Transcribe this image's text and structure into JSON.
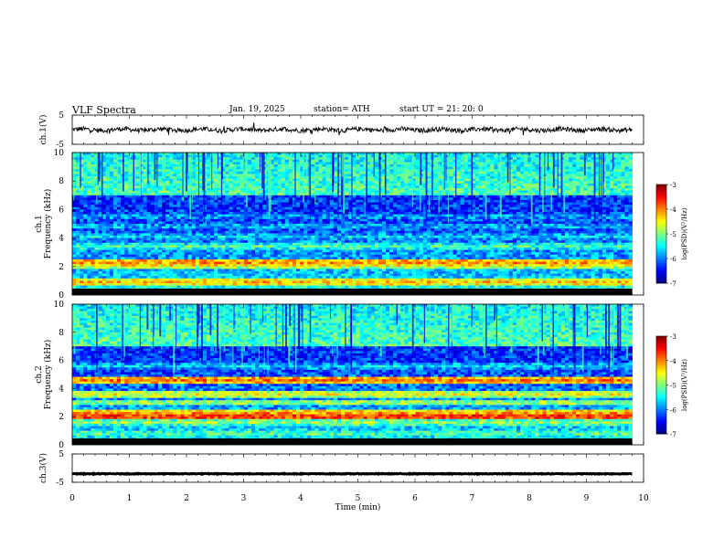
{
  "header": {
    "title": "VLF  Spectra",
    "date": "Jan. 19, 2025",
    "station": "station= ATH",
    "start": "start  UT  =    21: 20: 0"
  },
  "chart_data": [
    {
      "type": "line",
      "id": "ch1",
      "ylabel": "ch.1(V)",
      "ylim": [
        -5,
        5
      ],
      "yticks": [
        "5",
        "-5"
      ],
      "xlim": [
        0,
        10
      ],
      "series": [
        {
          "color": "#000000",
          "trace": "noisy",
          "level": 0.0,
          "end_min": 9.8
        }
      ]
    },
    {
      "type": "heatmap",
      "id": "ch1-spectrogram",
      "ylabel": "ch.1\nFrequency  (kHz)",
      "ylim": [
        0,
        10
      ],
      "yticks": [
        "0",
        "2",
        "4",
        "6",
        "8",
        "10"
      ],
      "xlim": [
        0,
        10
      ],
      "data_end_min": 9.8,
      "bands": [
        {
          "f": 0.5,
          "level": -5.3
        },
        {
          "f": 0.9,
          "level": -4.2
        },
        {
          "f": 2.1,
          "level": -4.5
        },
        {
          "f": 2.3,
          "level": -4.0
        },
        {
          "f": 3.4,
          "level": -5.2
        },
        {
          "f": 4.1,
          "level": -5.6
        },
        {
          "f": 4.8,
          "level": -5.7
        },
        {
          "f": 5.5,
          "level": -5.8
        }
      ],
      "colorbar": {
        "label": "log(PSD)(V²/Hz)",
        "ticks": [
          "-3",
          "-4",
          "-5",
          "-6",
          "-7"
        ],
        "range": [
          -7,
          -3
        ]
      }
    },
    {
      "type": "heatmap",
      "id": "ch2-spectrogram",
      "ylabel": "ch.2\nFrequency  (kHz)",
      "ylim": [
        0,
        10
      ],
      "yticks": [
        "0",
        "2",
        "4",
        "6",
        "8",
        "10"
      ],
      "xlim": [
        0,
        10
      ],
      "data_end_min": 9.8,
      "bands": [
        {
          "f": 0.8,
          "level": -5.1
        },
        {
          "f": 1.6,
          "level": -4.9
        },
        {
          "f": 2.0,
          "level": -3.6
        },
        {
          "f": 2.2,
          "level": -4.0
        },
        {
          "f": 3.0,
          "level": -4.8
        },
        {
          "f": 3.6,
          "level": -4.5
        },
        {
          "f": 4.6,
          "level": -3.9
        },
        {
          "f": 5.6,
          "level": -5.6
        }
      ],
      "colorbar": {
        "label": "log(PSD)(V²/Hz)",
        "ticks": [
          "-3",
          "-4",
          "-5",
          "-6",
          "-7"
        ],
        "range": [
          -7,
          -3
        ]
      }
    },
    {
      "type": "line",
      "id": "ch3",
      "ylabel": "ch.3(V)",
      "ylim": [
        -5,
        5
      ],
      "yticks": [
        "5",
        "-5"
      ],
      "xlim": [
        0,
        10
      ],
      "xlabel": "Time  (min)",
      "xticks": [
        "0",
        "1",
        "2",
        "3",
        "4",
        "5",
        "6",
        "7",
        "8",
        "9",
        "10"
      ],
      "series": [
        {
          "color": "#000000",
          "trace": "flat",
          "level": -2.0,
          "end_min": 9.8
        }
      ]
    }
  ]
}
